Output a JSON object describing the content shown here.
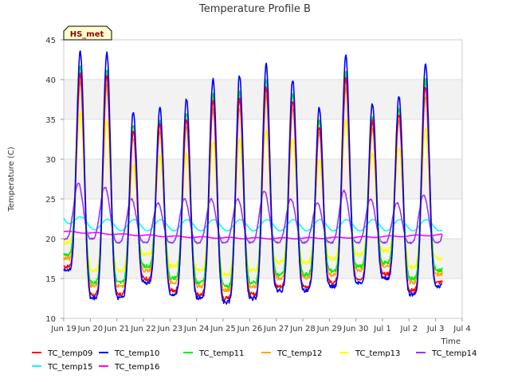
{
  "chart_data": {
    "type": "line",
    "title": "Temperature Profile B",
    "ylabel": "Temperature (C)",
    "xlabel": "Time",
    "site_tag": "HS_met",
    "ylim": [
      10,
      45
    ],
    "yticks": [
      10,
      15,
      20,
      25,
      30,
      35,
      40,
      45
    ],
    "xlim": [
      "2021-06-19",
      "2021-07-04"
    ],
    "xticks": [
      "Jun 19",
      "Jun 20",
      "Jun 21",
      "Jun 22",
      "Jun 23",
      "Jun 24",
      "Jun 25",
      "Jun 26",
      "Jun 27",
      "Jun 28",
      "Jun 29",
      "Jun 30",
      "Jul 1",
      "Jul 2",
      "Jul 3",
      "Jul 4"
    ],
    "data_range": [
      "2021-06-19T00:00",
      "2021-07-03T06:00"
    ],
    "grid_bands": true,
    "legend_position": "bottom",
    "daily_peaks": {
      "days": [
        "Jun 19",
        "Jun 20",
        "Jun 21",
        "Jun 22",
        "Jun 23",
        "Jun 24",
        "Jun 25",
        "Jun 26",
        "Jun 27",
        "Jun 28",
        "Jun 29",
        "Jun 30",
        "Jul 1",
        "Jul 2",
        "Jul 3"
      ],
      "TC_temp10_max": [
        43.5,
        43.5,
        36,
        36.5,
        37.5,
        40,
        40.5,
        42,
        40,
        36.5,
        43,
        37,
        38,
        42,
        42
      ],
      "TC_temp10_min": [
        16,
        12.5,
        12.5,
        14.5,
        13,
        12.5,
        12,
        12.5,
        13.5,
        13.5,
        14,
        14.5,
        15,
        13,
        14
      ]
    },
    "series": [
      {
        "name": "TC_temp09",
        "color": "#ff0000",
        "max_scale": 0.9,
        "min_offset": 0.5
      },
      {
        "name": "TC_temp10",
        "color": "#0000ff",
        "max_scale": 1.0,
        "min_offset": 0.0
      },
      {
        "name": "TC_temp11",
        "color": "#00ee00",
        "max_scale": 0.93,
        "min_offset": 2.0
      },
      {
        "name": "TC_temp12",
        "color": "#ffa500",
        "max_scale": 0.86,
        "min_offset": 1.5
      },
      {
        "name": "TC_temp13",
        "color": "#ffff00",
        "max_scale": 0.72,
        "min_offset": 3.5
      },
      {
        "name": "TC_temp14",
        "color": "#9933ff",
        "peaks": [
          27,
          26.5,
          25,
          24.5,
          25,
          25,
          25,
          26,
          25,
          24.5,
          26,
          25,
          24.5,
          25.5,
          25
        ],
        "troughs": [
          20,
          20,
          19.5,
          19.5,
          19.5,
          19.5,
          19.5,
          19.5,
          19.5,
          19.5,
          19.5,
          19.5,
          19.5,
          19.5,
          19.5
        ]
      },
      {
        "name": "TC_temp15",
        "color": "#00ffff",
        "start": 23,
        "mean": 21.7,
        "amplitude": 0.7
      },
      {
        "name": "TC_temp16",
        "color": "#ff00ff",
        "start": 20.9,
        "end": 20.5,
        "dip": 20.2
      }
    ]
  }
}
